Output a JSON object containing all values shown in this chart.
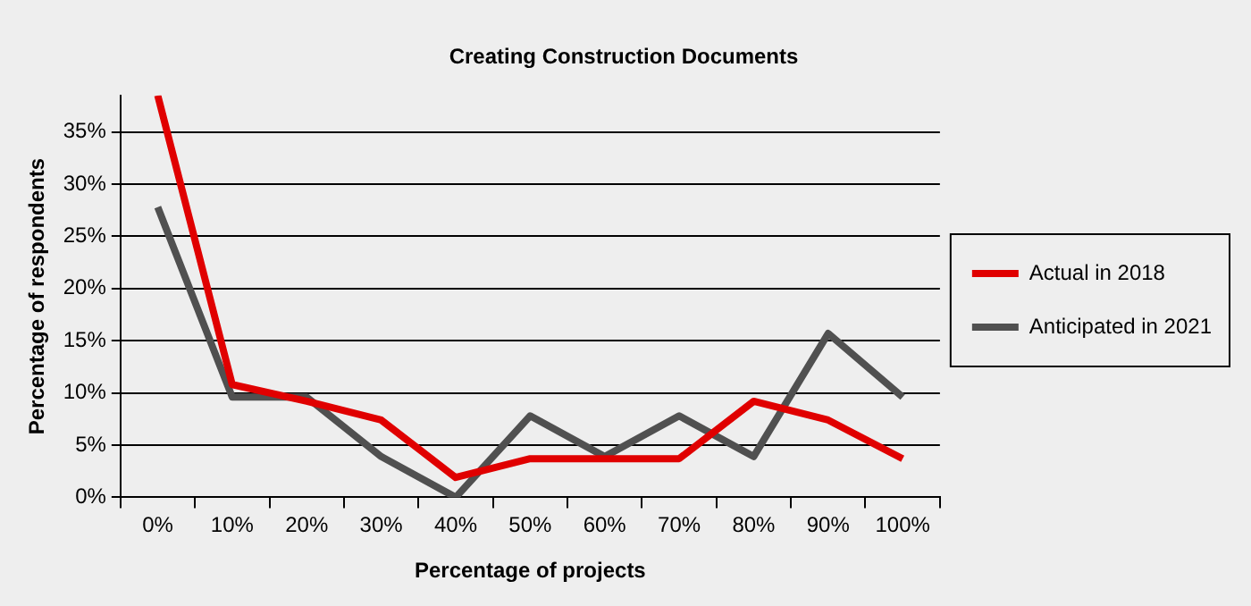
{
  "chart_data": {
    "type": "line",
    "title": "Creating Construction Documents",
    "xlabel": "Percentage of projects",
    "ylabel": "Percentage of respondents",
    "categories": [
      "0%",
      "10%",
      "20%",
      "30%",
      "40%",
      "50%",
      "60%",
      "70%",
      "80%",
      "90%",
      "100%"
    ],
    "series": [
      {
        "name": "Actual in 2018",
        "color": "#e00000",
        "values": [
          38.5,
          10.8,
          9.2,
          7.4,
          1.9,
          3.7,
          3.7,
          3.7,
          9.2,
          7.4,
          3.7
        ]
      },
      {
        "name": "Anticipated in 2021",
        "color": "#505050",
        "values": [
          27.8,
          9.6,
          9.6,
          3.9,
          0,
          7.8,
          3.9,
          7.8,
          3.9,
          15.7,
          9.6
        ]
      }
    ],
    "ylim": [
      0,
      38.5
    ],
    "yticks": [
      {
        "value": 0,
        "label": "0%"
      },
      {
        "value": 5,
        "label": "5%"
      },
      {
        "value": 10,
        "label": "10%"
      },
      {
        "value": 15,
        "label": "15%"
      },
      {
        "value": 20,
        "label": "20%"
      },
      {
        "value": 25,
        "label": "25%"
      },
      {
        "value": 30,
        "label": "30%"
      },
      {
        "value": 35,
        "label": "35%"
      }
    ],
    "grid": "y",
    "legend": "right",
    "marker": "none",
    "line_style": "solid"
  }
}
